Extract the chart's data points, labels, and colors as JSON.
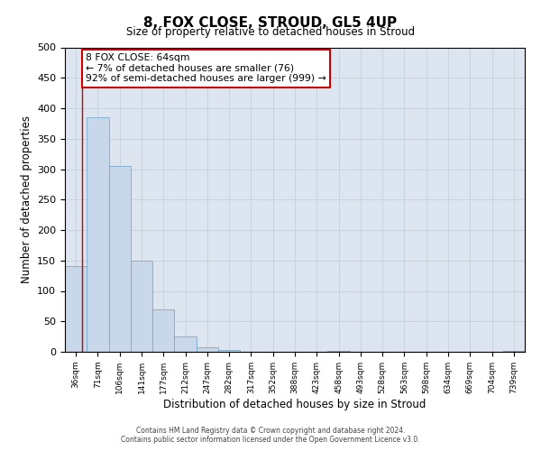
{
  "title": "8, FOX CLOSE, STROUD, GL5 4UP",
  "subtitle": "Size of property relative to detached houses in Stroud",
  "xlabel": "Distribution of detached houses by size in Stroud",
  "ylabel": "Number of detached properties",
  "bar_color": "#c8d8ea",
  "bar_edge_color": "#7aaac8",
  "background_color": "#ffffff",
  "grid_color": "#c0ccd8",
  "plot_bg_color": "#dde6f0",
  "categories": [
    "36sqm",
    "71sqm",
    "106sqm",
    "141sqm",
    "177sqm",
    "212sqm",
    "247sqm",
    "282sqm",
    "317sqm",
    "352sqm",
    "388sqm",
    "423sqm",
    "458sqm",
    "493sqm",
    "528sqm",
    "563sqm",
    "598sqm",
    "634sqm",
    "669sqm",
    "704sqm",
    "739sqm"
  ],
  "values": [
    141,
    385,
    305,
    150,
    70,
    25,
    8,
    3,
    0,
    0,
    0,
    0,
    2,
    0,
    0,
    0,
    0,
    0,
    0,
    0,
    2
  ],
  "ylim": [
    0,
    500
  ],
  "yticks": [
    0,
    50,
    100,
    150,
    200,
    250,
    300,
    350,
    400,
    450,
    500
  ],
  "annotation_title": "8 FOX CLOSE: 64sqm",
  "annotation_line1": "← 7% of detached houses are smaller (76)",
  "annotation_line2": "92% of semi-detached houses are larger (999) →",
  "annotation_box_color": "#ffffff",
  "annotation_box_edge_color": "#cc0000",
  "footer_line1": "Contains HM Land Registry data © Crown copyright and database right 2024.",
  "footer_line2": "Contains public sector information licensed under the Open Government Licence v3.0."
}
